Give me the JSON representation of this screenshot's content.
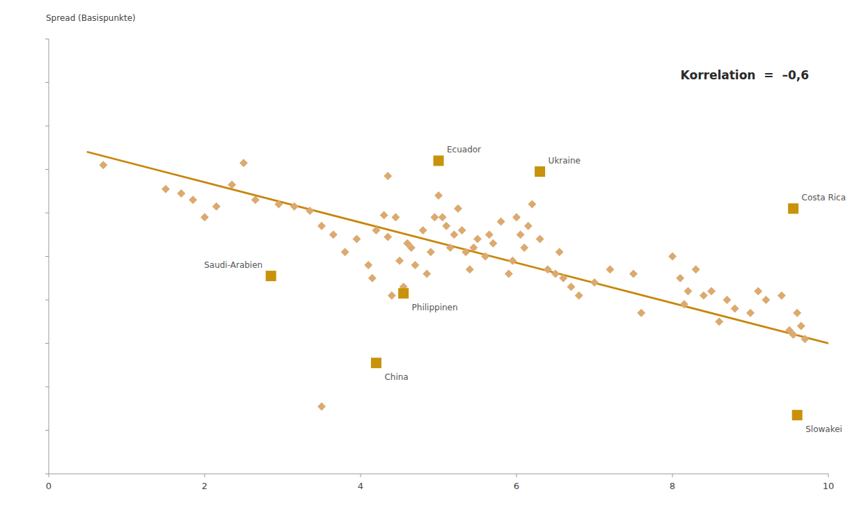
{
  "chart_data": {
    "type": "scatter",
    "y_label": "Spread (Basispunkte)",
    "annotation": "Korrelation  =  –0,6",
    "xlim": [
      0,
      10
    ],
    "ylim": [
      0,
      1
    ],
    "xticks": [
      0,
      2,
      4,
      6,
      8,
      10
    ],
    "yticks": [
      0,
      0.1,
      0.2,
      0.3,
      0.4,
      0.5,
      0.6,
      0.7,
      0.8,
      0.9,
      1
    ],
    "tick_labels": "x",
    "grid": false,
    "series": [
      {
        "type": "scatter",
        "marker": "diamond",
        "color": "#dca96e",
        "x": [
          0.7,
          1.5,
          1.7,
          1.85,
          2.0,
          2.15,
          2.35,
          2.5,
          2.65,
          2.95,
          3.15,
          3.35,
          3.5,
          3.65,
          3.8,
          3.95,
          4.1,
          4.15,
          4.2,
          4.3,
          4.35,
          4.4,
          4.45,
          4.5,
          4.55,
          4.6,
          4.65,
          4.7,
          4.8,
          4.85,
          4.9,
          4.95,
          5.0,
          5.05,
          5.1,
          5.15,
          5.2,
          5.25,
          5.3,
          5.35,
          5.4,
          5.45,
          5.5,
          5.6,
          5.65,
          5.7,
          5.8,
          5.9,
          5.95,
          6.0,
          6.05,
          6.1,
          6.15,
          6.2,
          6.3,
          6.4,
          6.5,
          6.55,
          6.6,
          6.7,
          6.8,
          7.0,
          7.2,
          7.5,
          7.6,
          8.0,
          8.1,
          8.15,
          8.2,
          8.3,
          8.4,
          8.5,
          8.6,
          8.7,
          8.8,
          9.0,
          9.1,
          9.2,
          9.4,
          9.5,
          9.55,
          9.6,
          9.65,
          9.7,
          4.35,
          3.5
        ],
        "values": [
          0.71,
          0.655,
          0.645,
          0.63,
          0.59,
          0.615,
          0.665,
          0.715,
          0.63,
          0.62,
          0.615,
          0.605,
          0.57,
          0.55,
          0.51,
          0.54,
          0.48,
          0.45,
          0.56,
          0.595,
          0.545,
          0.41,
          0.59,
          0.49,
          0.43,
          0.53,
          0.52,
          0.48,
          0.56,
          0.46,
          0.51,
          0.59,
          0.64,
          0.59,
          0.57,
          0.52,
          0.55,
          0.61,
          0.56,
          0.51,
          0.47,
          0.52,
          0.54,
          0.5,
          0.55,
          0.53,
          0.58,
          0.46,
          0.49,
          0.59,
          0.55,
          0.52,
          0.57,
          0.62,
          0.54,
          0.47,
          0.46,
          0.51,
          0.45,
          0.43,
          0.41,
          0.44,
          0.47,
          0.46,
          0.37,
          0.5,
          0.45,
          0.39,
          0.42,
          0.47,
          0.41,
          0.42,
          0.35,
          0.4,
          0.38,
          0.37,
          0.42,
          0.4,
          0.41,
          0.33,
          0.32,
          0.37,
          0.34,
          0.31,
          0.685,
          0.155
        ]
      },
      {
        "type": "scatter",
        "marker": "square",
        "color": "#c8920a",
        "x": [
          5.0,
          6.3,
          9.55,
          2.85,
          4.55,
          4.2,
          9.6
        ],
        "values": [
          0.72,
          0.695,
          0.61,
          0.455,
          0.415,
          0.255,
          0.135
        ],
        "labels": [
          "Ecuador",
          "Ukraine",
          "Costa Rica",
          "Saudi-Arabien",
          "Philippinen",
          "China",
          "Slowakei"
        ]
      },
      {
        "type": "line",
        "color": "#c8860a",
        "x": [
          0.5,
          10.0
        ],
        "values": [
          0.74,
          0.3
        ]
      }
    ]
  }
}
